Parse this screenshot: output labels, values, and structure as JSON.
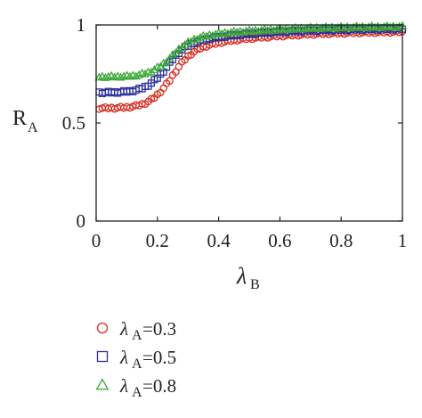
{
  "chart_data": {
    "type": "scatter",
    "xlabel": {
      "symbol": "λ",
      "sub": "B"
    },
    "ylabel": {
      "main": "R",
      "sub": "A"
    },
    "xlim": [
      0,
      1
    ],
    "ylim": [
      0,
      1
    ],
    "xticks": [
      "0",
      "0.2",
      "0.4",
      "0.6",
      "0.8",
      "1"
    ],
    "xtick_values": [
      0,
      0.2,
      0.4,
      0.6,
      0.8,
      1
    ],
    "yticks": [
      "0",
      "0.5",
      "1"
    ],
    "ytick_values": [
      0,
      0.5,
      1
    ],
    "grid": false,
    "legend_position": "below",
    "series": [
      {
        "name": "λA=0.3",
        "legend": {
          "symbol": "λ",
          "sub": "A",
          "value": "=0.3"
        },
        "marker": "circle",
        "color": "#d62c1f",
        "params": {
          "low": 0.575,
          "high": 0.97,
          "mid": 0.24,
          "width": 0.035
        }
      },
      {
        "name": "λA=0.5",
        "legend": {
          "symbol": "λ",
          "sub": "A",
          "value": "=0.5"
        },
        "marker": "square",
        "color": "#2d2f9e",
        "params": {
          "low": 0.655,
          "high": 0.985,
          "mid": 0.225,
          "width": 0.033
        }
      },
      {
        "name": "λA=0.8",
        "legend": {
          "symbol": "λ",
          "sub": "A",
          "value": "=0.8"
        },
        "marker": "triangle",
        "color": "#3aa735",
        "params": {
          "low": 0.735,
          "high": 0.995,
          "mid": 0.24,
          "width": 0.035
        }
      }
    ],
    "x_sample": {
      "start": 0.01,
      "end": 1.0,
      "step": 0.01
    }
  },
  "colors": {
    "axis": "#222222",
    "background": "#ffffff"
  }
}
